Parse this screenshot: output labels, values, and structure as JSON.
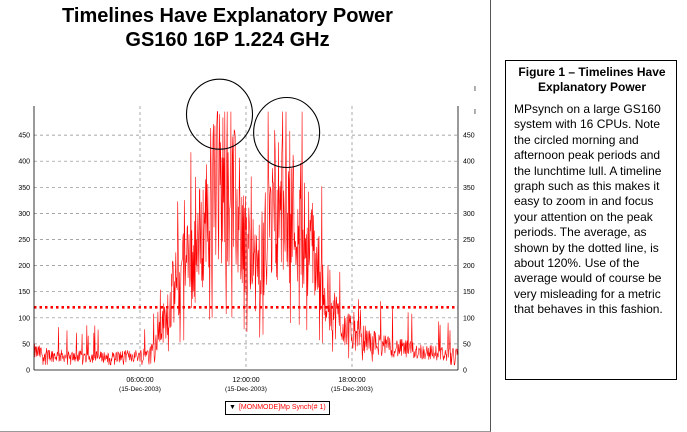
{
  "chart_data": {
    "type": "line",
    "title": "Timelines Have Explanatory Power",
    "subtitle": "GS160 16P 1.224 GHz",
    "xlabel": "",
    "ylabel": "",
    "ylim": [
      0,
      500
    ],
    "y_ticks": [
      "0",
      "50",
      "100",
      "150",
      "200",
      "250",
      "300",
      "350",
      "400",
      "450"
    ],
    "right_y_ticks": [
      "0",
      "50",
      "100",
      "150",
      "200",
      "250",
      "300",
      "350",
      "400",
      "450"
    ],
    "right_y_stray_marks": [
      "I",
      "I"
    ],
    "x_ticks": [
      {
        "time": "06:00:00",
        "date": "(15-Dec-2003)"
      },
      {
        "time": "12:00:00",
        "date": "(15-Dec-2003)"
      },
      {
        "time": "18:00:00",
        "date": "(15-Dec-2003)"
      }
    ],
    "x_range_hours": [
      0,
      24
    ],
    "grid": true,
    "series": [
      {
        "name": "[MONMODE]Mp Synch(# 1)",
        "color": "#ff0000",
        "envelope_hours": [
          0,
          1,
          2,
          3,
          4,
          5,
          6,
          6.5,
          7,
          7.5,
          8,
          8.5,
          9,
          9.5,
          10,
          10.5,
          11,
          11.25,
          11.5,
          12,
          12.5,
          13,
          13.5,
          14,
          14.5,
          15,
          15.5,
          16,
          16.5,
          17,
          17.5,
          18,
          19,
          20,
          21,
          22,
          23,
          24
        ],
        "envelope_values": [
          35,
          28,
          26,
          25,
          25,
          26,
          28,
          35,
          55,
          110,
          160,
          190,
          210,
          260,
          330,
          350,
          360,
          330,
          300,
          250,
          180,
          230,
          290,
          320,
          300,
          290,
          250,
          210,
          150,
          110,
          85,
          70,
          55,
          45,
          40,
          35,
          32,
          28
        ]
      }
    ],
    "average": {
      "value": 120,
      "style": "dotted",
      "color": "#ff0000"
    },
    "annotations": [
      {
        "type": "circle",
        "label": "morning peak",
        "center_hours": 10.5,
        "center_value": 490
      },
      {
        "type": "circle",
        "label": "afternoon peak",
        "center_hours": 14.3,
        "center_value": 455
      }
    ]
  },
  "legend": {
    "arrow": "▼",
    "label": "[MONMODE]Mp Synch(# 1)"
  },
  "caption": {
    "title": "Figure 1 – Timelines Have Explanatory Power",
    "body": "MPsynch on a large GS160 system with 16 CPUs.  Note the circled morning and afternoon peak periods and the lunchtime lull.  A timeline graph such as this makes it easy to zoom in and focus your attention on the peak periods.  The average, as shown by the dotted line, is about 120%.  Use of the average would of course be very misleading for a metric that behaves in this fashion."
  }
}
